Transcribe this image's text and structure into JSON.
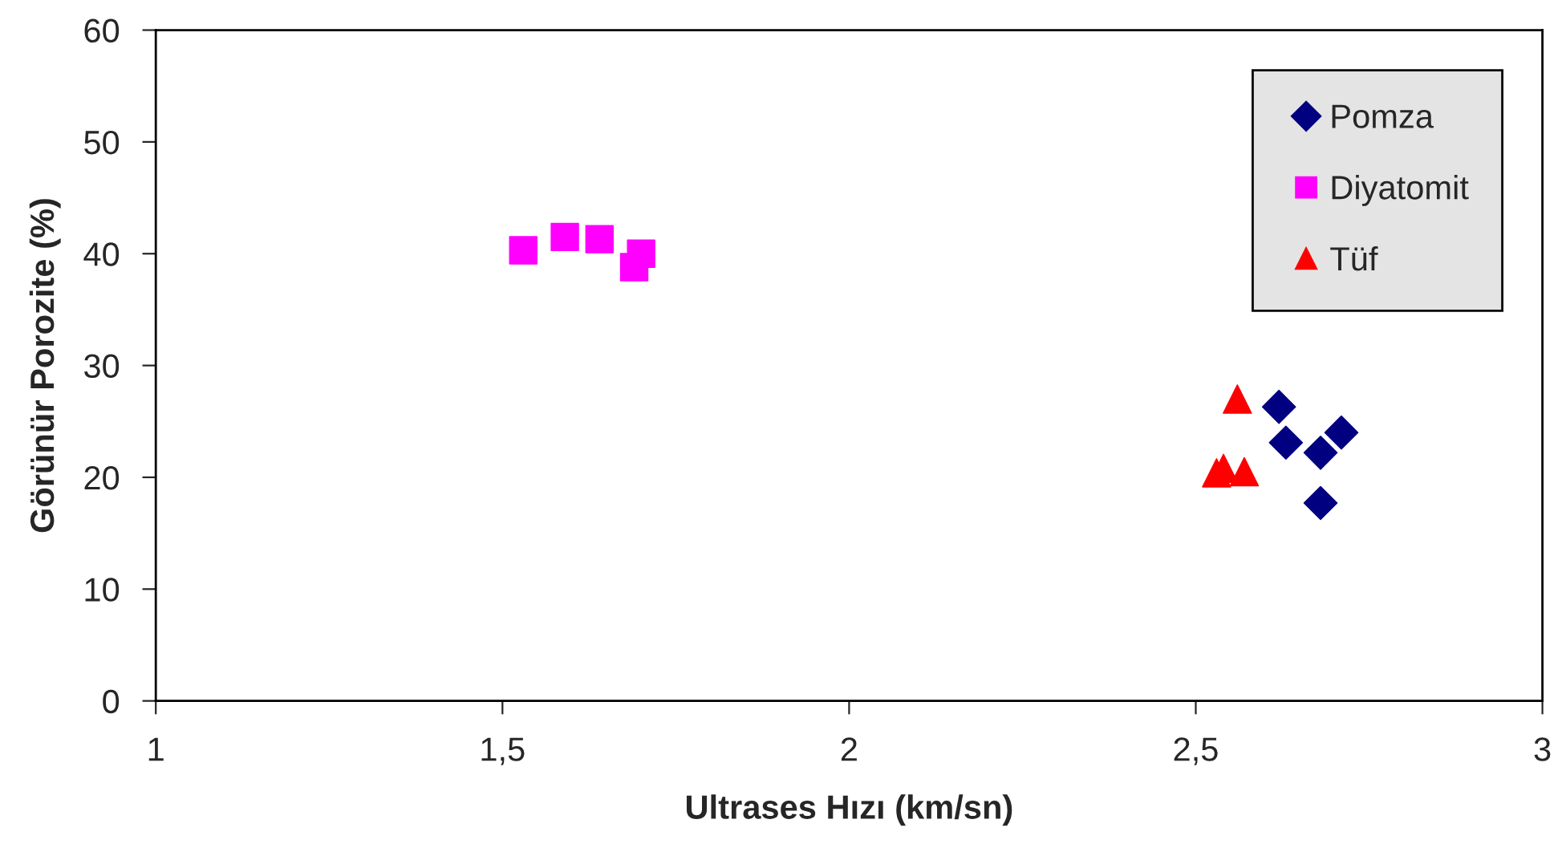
{
  "chart_data": {
    "type": "scatter",
    "xlabel": "Ultrases Hızı (km/sn)",
    "ylabel": "Görünür Porozite (%)",
    "xlim": [
      1,
      3
    ],
    "xticks": [
      {
        "value": 1,
        "label": "1"
      },
      {
        "value": 1.5,
        "label": "1,5"
      },
      {
        "value": 2,
        "label": "2"
      },
      {
        "value": 2.5,
        "label": "2,5"
      },
      {
        "value": 3,
        "label": "3"
      }
    ],
    "ylim": [
      0,
      60
    ],
    "yticks": [
      0,
      10,
      20,
      30,
      40,
      50,
      60
    ],
    "grid": false,
    "legend": "top right",
    "series": [
      {
        "name": "Pomza",
        "color": "#000080",
        "marker": "diamond",
        "x": [
          2.62,
          2.63,
          2.68,
          2.71,
          2.68
        ],
        "values": [
          26.3,
          23.1,
          22.2,
          24.0,
          17.7
        ]
      },
      {
        "name": "Diyatomit",
        "color": "#ff00ff",
        "marker": "square",
        "x": [
          1.53,
          1.59,
          1.64,
          1.7,
          1.69
        ],
        "values": [
          40.3,
          41.5,
          41.3,
          40.0,
          38.8
        ]
      },
      {
        "name": "Tüf",
        "color": "#ff0000",
        "marker": "triangle",
        "x": [
          2.56,
          2.53,
          2.54,
          2.57
        ],
        "values": [
          27.0,
          20.4,
          20.8,
          20.5
        ]
      }
    ]
  }
}
